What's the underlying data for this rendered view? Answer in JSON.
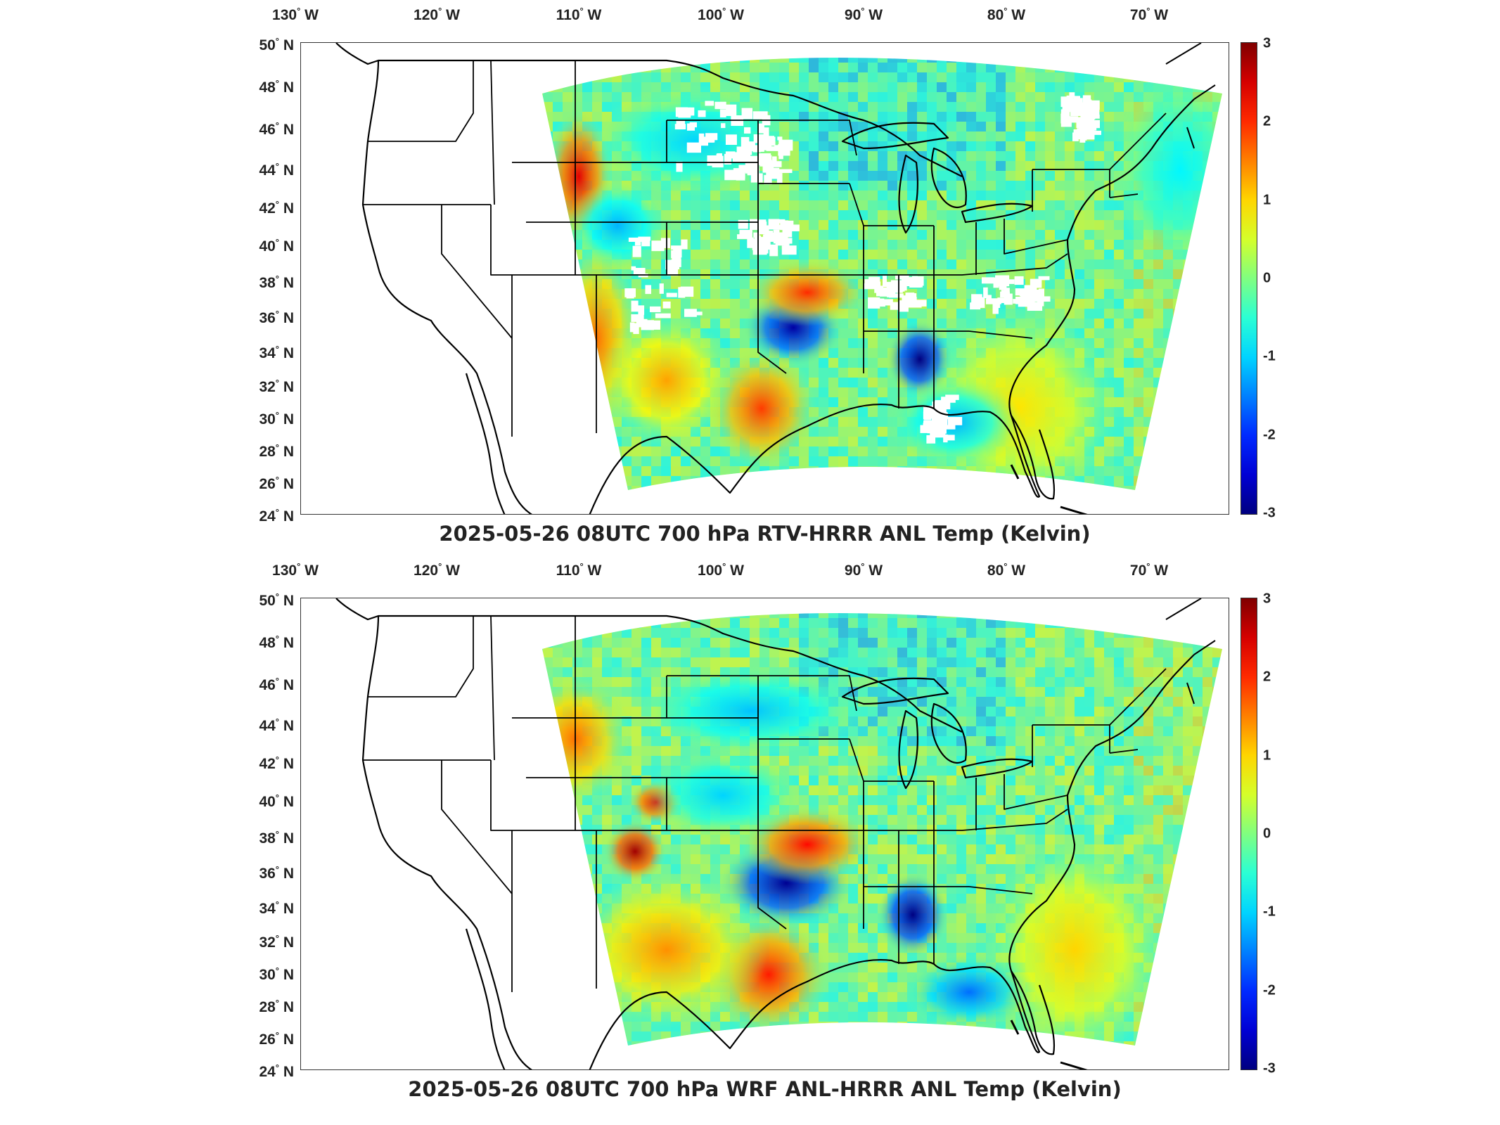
{
  "lon_labels": [
    {
      "deg": "130",
      "hem": "W"
    },
    {
      "deg": "120",
      "hem": "W"
    },
    {
      "deg": "110",
      "hem": "W"
    },
    {
      "deg": "100",
      "hem": "W"
    },
    {
      "deg": "90",
      "hem": "W"
    },
    {
      "deg": "80",
      "hem": "W"
    },
    {
      "deg": "70",
      "hem": "W"
    }
  ],
  "lat_labels": [
    {
      "deg": "50",
      "hem": "N"
    },
    {
      "deg": "48",
      "hem": "N"
    },
    {
      "deg": "46",
      "hem": "N"
    },
    {
      "deg": "44",
      "hem": "N"
    },
    {
      "deg": "42",
      "hem": "N"
    },
    {
      "deg": "40",
      "hem": "N"
    },
    {
      "deg": "38",
      "hem": "N"
    },
    {
      "deg": "36",
      "hem": "N"
    },
    {
      "deg": "34",
      "hem": "N"
    },
    {
      "deg": "32",
      "hem": "N"
    },
    {
      "deg": "30",
      "hem": "N"
    },
    {
      "deg": "28",
      "hem": "N"
    },
    {
      "deg": "26",
      "hem": "N"
    },
    {
      "deg": "24",
      "hem": "N"
    }
  ],
  "colorbar": {
    "ticks": [
      "3",
      "2",
      "1",
      "0",
      "-1",
      "-2",
      "-3"
    ],
    "range": [
      -3,
      3
    ],
    "colormap": "jet"
  },
  "panels": [
    {
      "title": "2025-05-26 08UTC 700 hPa RTV-HRRR ANL Temp (Kelvin)"
    },
    {
      "title": "2025-05-26 08UTC 700 hPa WRF ANL-HRRR ANL Temp (Kelvin)"
    }
  ],
  "colors": {
    "background_field": "#5fe0b4",
    "warm": "#d7261b",
    "cold": "#0a1ea8",
    "missing": "#ffffff",
    "outline": "#000000"
  }
}
